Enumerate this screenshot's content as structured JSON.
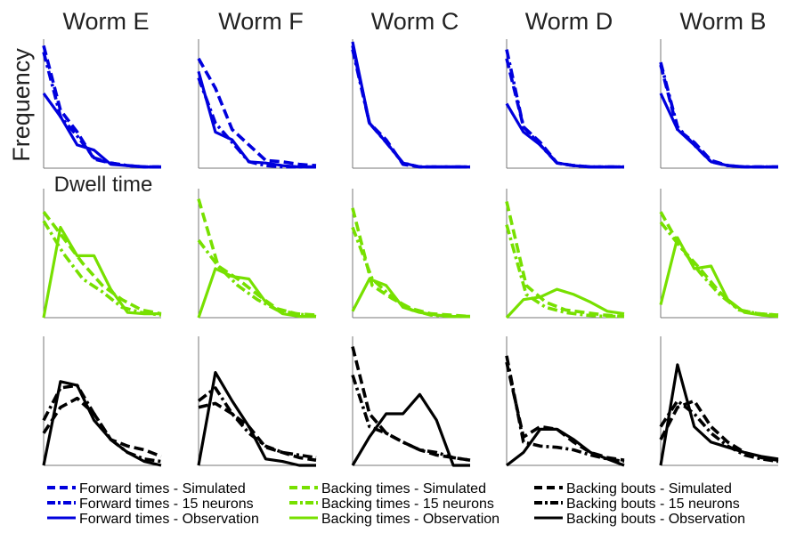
{
  "chart_data": {
    "type": "line",
    "ylabel": "Frequency",
    "xlabel": "Dwell time",
    "columns": [
      "Worm E",
      "Worm F",
      "Worm C",
      "Worm D",
      "Worm B"
    ],
    "rows": [
      {
        "color": "#0000dd",
        "series": [
          {
            "name": "Forward times - Simulated",
            "style": "dash",
            "panels": [
              [
                0.95,
                0.45,
                0.28,
                0.07,
                0.04,
                0.02,
                0.01,
                0.01
              ],
              [
                0.85,
                0.62,
                0.3,
                0.18,
                0.06,
                0.05,
                0.03,
                0.02
              ],
              [
                0.95,
                0.35,
                0.22,
                0.03,
                0.01,
                0.01,
                0.01,
                0.01
              ],
              [
                0.85,
                0.32,
                0.2,
                0.04,
                0.02,
                0.01,
                0.01,
                0.01
              ],
              [
                0.8,
                0.3,
                0.2,
                0.06,
                0.02,
                0.01,
                0.01,
                0.01
              ]
            ]
          },
          {
            "name": "Forward times - 15 neurons",
            "style": "dashdot",
            "panels": [
              [
                0.9,
                0.4,
                0.25,
                0.08,
                0.04,
                0.02,
                0.01,
                0.01
              ],
              [
                0.7,
                0.35,
                0.2,
                0.05,
                0.02,
                0.01,
                0.01,
                0.01
              ],
              [
                0.92,
                0.35,
                0.2,
                0.04,
                0.01,
                0.01,
                0.01,
                0.01
              ],
              [
                0.92,
                0.32,
                0.18,
                0.04,
                0.02,
                0.01,
                0.01,
                0.01
              ],
              [
                0.82,
                0.32,
                0.18,
                0.05,
                0.02,
                0.01,
                0.01,
                0.01
              ]
            ]
          },
          {
            "name": "Forward times - Observation",
            "style": "solid",
            "panels": [
              [
                0.58,
                0.4,
                0.18,
                0.14,
                0.03,
                0.02,
                0.01,
                0.01
              ],
              [
                0.75,
                0.28,
                0.22,
                0.05,
                0.04,
                0.02,
                0.01,
                0.01
              ],
              [
                0.98,
                0.35,
                0.2,
                0.04,
                0.01,
                0.01,
                0.01,
                0.01
              ],
              [
                0.5,
                0.28,
                0.18,
                0.04,
                0.02,
                0.01,
                0.01,
                0.01
              ],
              [
                0.58,
                0.3,
                0.18,
                0.05,
                0.02,
                0.01,
                0.01,
                0.01
              ]
            ]
          }
        ]
      },
      {
        "color": "#77e000",
        "series": [
          {
            "name": "Backing times - Simulated",
            "style": "dash",
            "panels": [
              [
                0.82,
                0.62,
                0.42,
                0.25,
                0.14,
                0.06,
                0.03
              ],
              [
                0.92,
                0.4,
                0.3,
                0.18,
                0.07,
                0.03,
                0.02
              ],
              [
                0.85,
                0.25,
                0.15,
                0.07,
                0.03,
                0.02,
                0.01
              ],
              [
                0.9,
                0.25,
                0.12,
                0.06,
                0.04,
                0.02,
                0.01
              ],
              [
                0.82,
                0.55,
                0.38,
                0.2,
                0.06,
                0.03,
                0.02
              ]
            ]
          },
          {
            "name": "Backing times - 15 neurons",
            "style": "dashdot",
            "panels": [
              [
                0.75,
                0.5,
                0.3,
                0.2,
                0.08,
                0.04,
                0.02
              ],
              [
                0.6,
                0.4,
                0.25,
                0.14,
                0.06,
                0.03,
                0.01
              ],
              [
                0.7,
                0.3,
                0.16,
                0.06,
                0.02,
                0.01,
                0.01
              ],
              [
                0.72,
                0.18,
                0.08,
                0.04,
                0.02,
                0.01,
                0.01
              ],
              [
                0.74,
                0.55,
                0.35,
                0.18,
                0.06,
                0.03,
                0.02
              ]
            ]
          },
          {
            "name": "Backing times - Observation",
            "style": "solid",
            "panels": [
              [
                0.0,
                0.7,
                0.48,
                0.48,
                0.22,
                0.04,
                0.03,
                0.03
              ],
              [
                0.0,
                0.38,
                0.32,
                0.3,
                0.12,
                0.03,
                0.01,
                0.01
              ],
              [
                0.05,
                0.3,
                0.25,
                0.08,
                0.04,
                0.02,
                0.01,
                0.01
              ],
              [
                0.0,
                0.14,
                0.16,
                0.22,
                0.18,
                0.12,
                0.05,
                0.03
              ],
              [
                0.1,
                0.62,
                0.38,
                0.4,
                0.14,
                0.04,
                0.02,
                0.01
              ]
            ]
          }
        ]
      },
      {
        "color": "#000000",
        "series": [
          {
            "name": "Backing bouts - Simulated",
            "style": "dash",
            "panels": [
              [
                0.25,
                0.45,
                0.52,
                0.4,
                0.2,
                0.15,
                0.12,
                0.07
              ],
              [
                0.45,
                0.48,
                0.4,
                0.3,
                0.14,
                0.1,
                0.06,
                0.04
              ],
              [
                0.92,
                0.4,
                0.25,
                0.18,
                0.12,
                0.08,
                0.06,
                0.04
              ],
              [
                0.8,
                0.22,
                0.3,
                0.28,
                0.18,
                0.1,
                0.06,
                0.04
              ],
              [
                0.2,
                0.45,
                0.5,
                0.3,
                0.18,
                0.1,
                0.06,
                0.04
              ]
            ]
          },
          {
            "name": "Backing bouts - 15 neurons",
            "style": "dashdot",
            "panels": [
              [
                0.35,
                0.6,
                0.62,
                0.4,
                0.2,
                0.1,
                0.05,
                0.03
              ],
              [
                0.5,
                0.6,
                0.4,
                0.25,
                0.15,
                0.1,
                0.08,
                0.06
              ],
              [
                0.7,
                0.3,
                0.25,
                0.18,
                0.12,
                0.1,
                0.06,
                0.04
              ],
              [
                0.85,
                0.18,
                0.15,
                0.14,
                0.12,
                0.08,
                0.05,
                0.03
              ],
              [
                0.3,
                0.5,
                0.4,
                0.25,
                0.15,
                0.08,
                0.05,
                0.03
              ]
            ]
          },
          {
            "name": "Backing bouts - Observation",
            "style": "solid",
            "panels": [
              [
                0.0,
                0.65,
                0.62,
                0.35,
                0.2,
                0.1,
                0.03,
                0.0
              ],
              [
                0.0,
                0.72,
                0.5,
                0.3,
                0.05,
                0.03,
                0.0,
                0.0
              ],
              [
                0.0,
                0.22,
                0.4,
                0.4,
                0.55,
                0.35,
                0.0,
                0.0
              ],
              [
                0.0,
                0.1,
                0.28,
                0.28,
                0.2,
                0.1,
                0.05,
                0.0
              ],
              [
                0.0,
                0.78,
                0.3,
                0.18,
                0.14,
                0.1,
                0.07,
                0.05
              ]
            ]
          }
        ]
      }
    ],
    "legend": [
      [
        "Forward times - Simulated",
        "Forward times - 15 neurons",
        "Forward times - Observation"
      ],
      [
        "Backing times - Simulated",
        "Backing times - 15 neurons",
        "Backing times - Observation"
      ],
      [
        "Backing bouts - Simulated",
        "Backing bouts - 15 neurons",
        "Backing bouts - Observation"
      ]
    ],
    "legend_placement": "bottom",
    "grid": false
  }
}
